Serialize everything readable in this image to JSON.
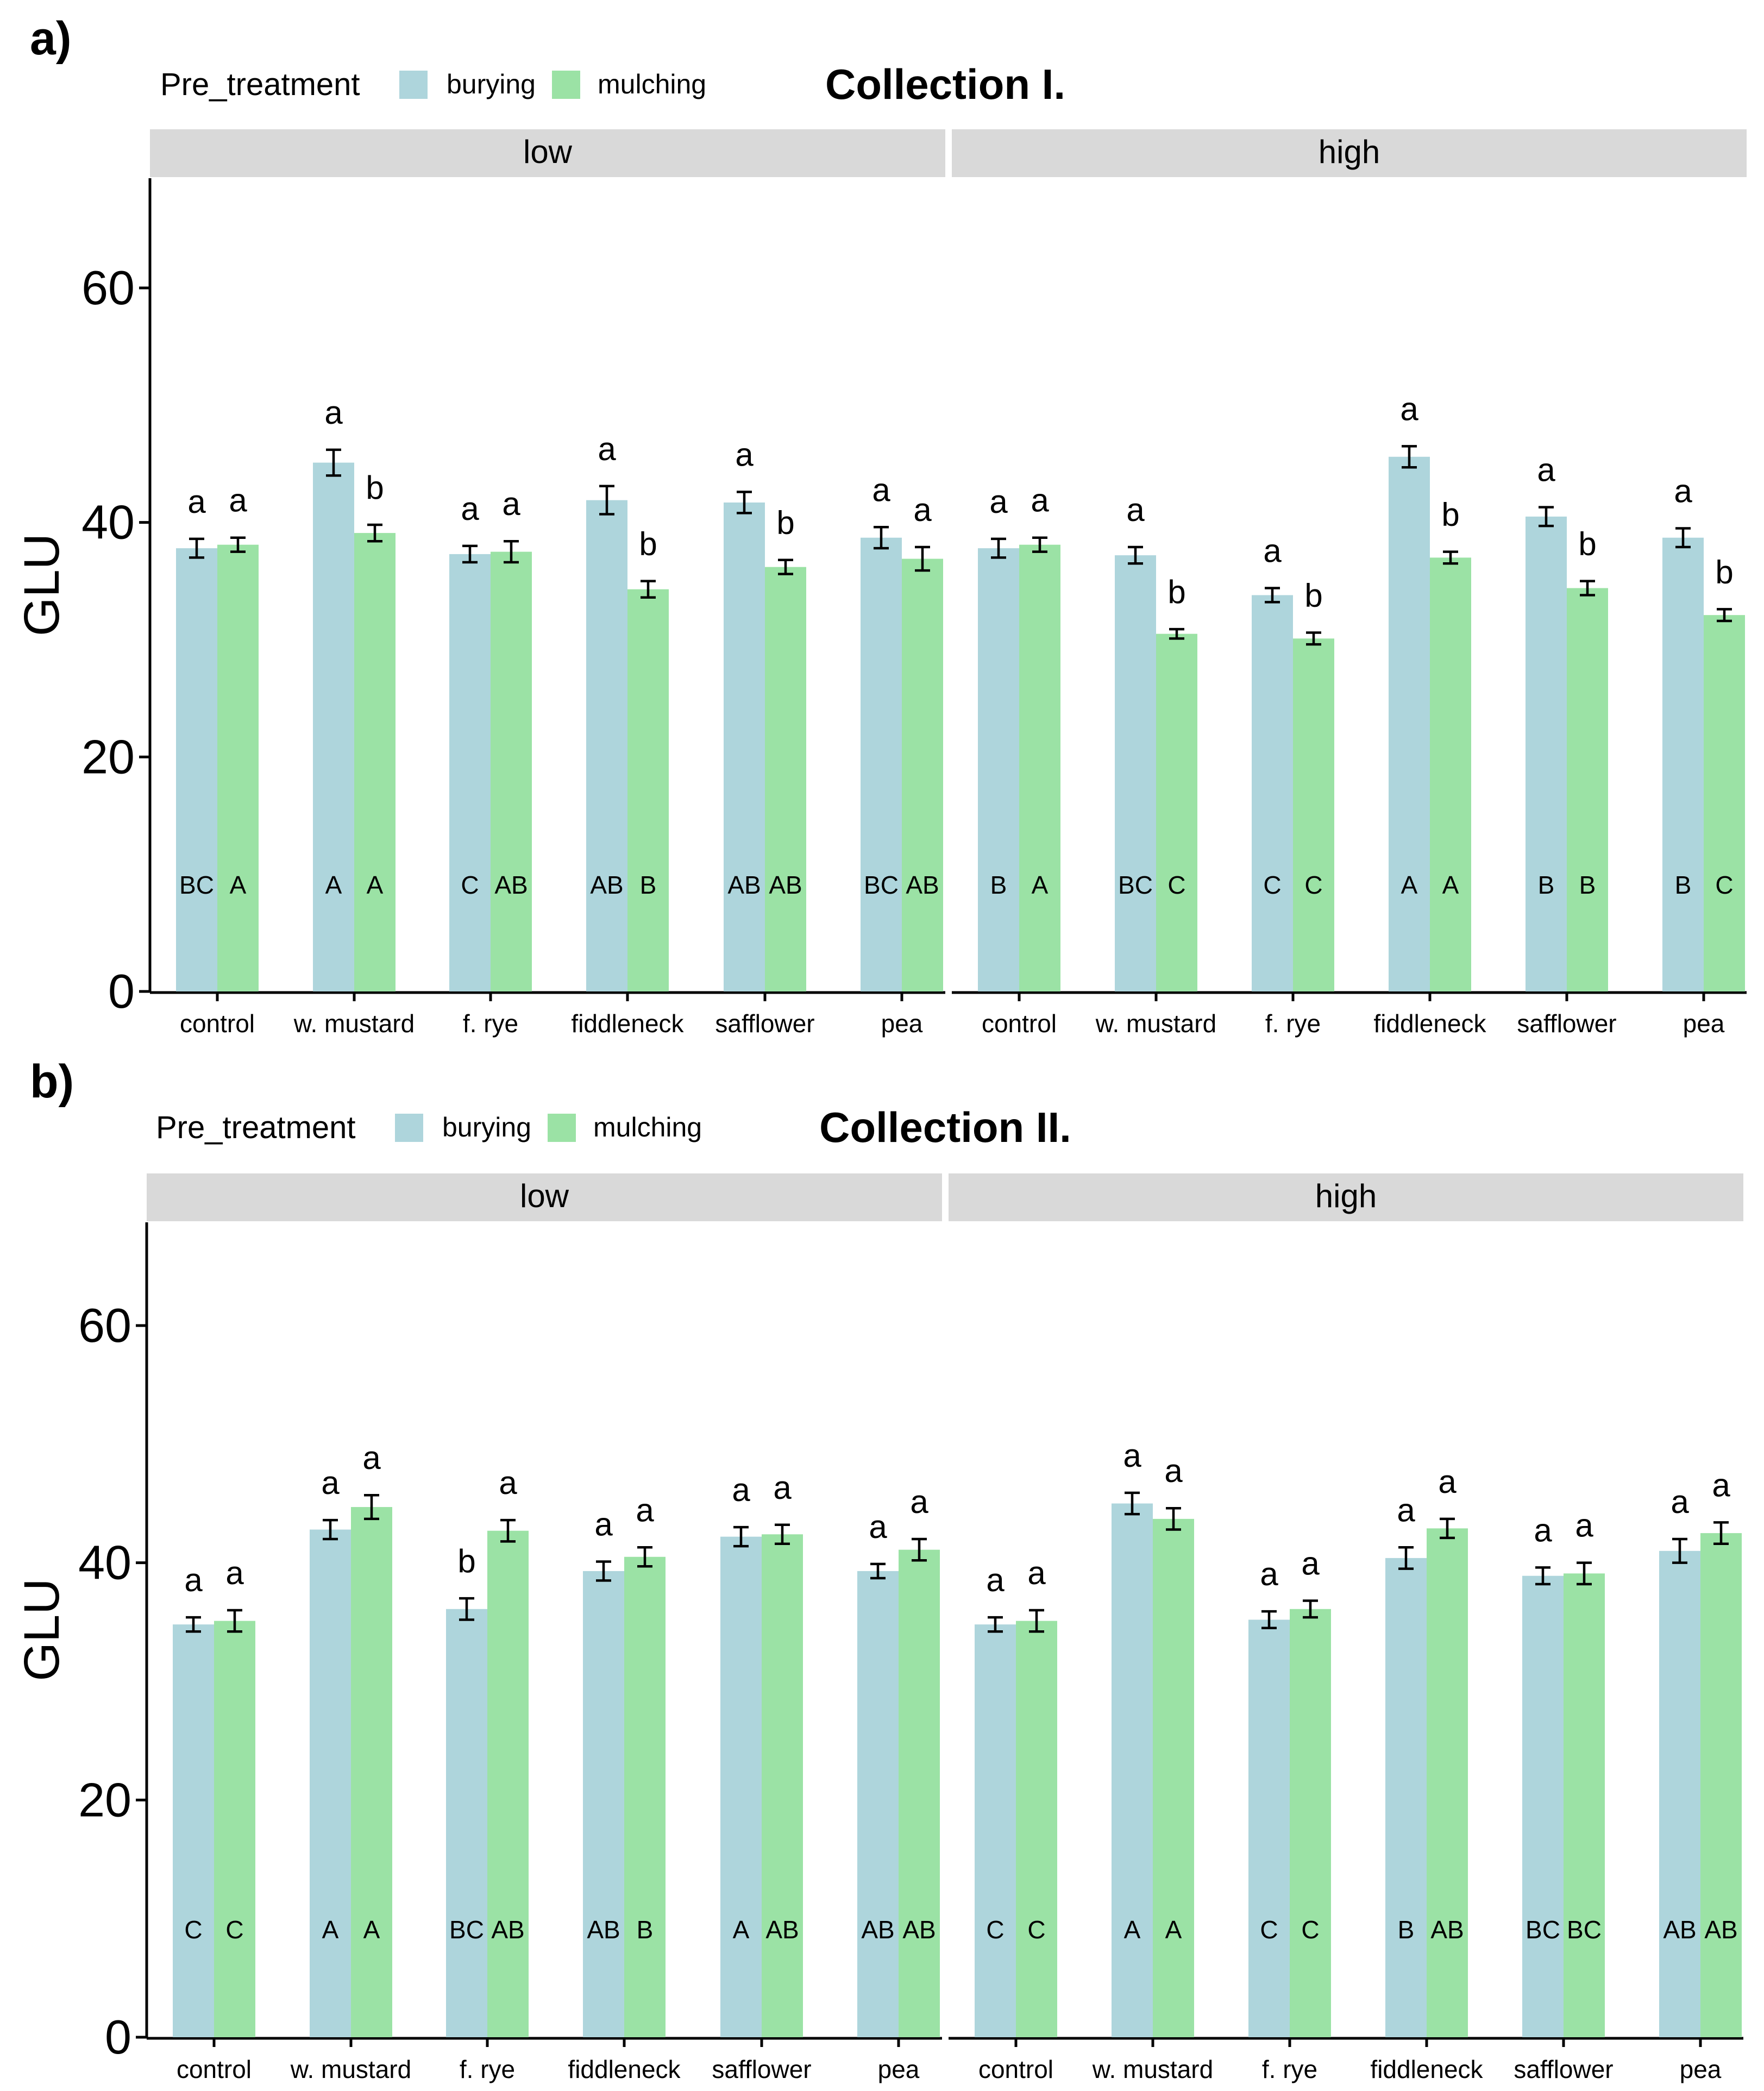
{
  "colors": {
    "burying": "#aed5dc",
    "mulching": "#9be2a5"
  },
  "legend": {
    "title": "Pre_treatment",
    "items": [
      "burying",
      "mulching"
    ]
  },
  "chart_data": [
    {
      "type": "bar",
      "panel_label": "a)",
      "title": "Collection I.",
      "ylabel": "GLU",
      "ylim": [
        0,
        68
      ],
      "yticks": [
        0,
        20,
        40,
        60
      ],
      "facets": [
        {
          "label": "low",
          "categories": [
            "control",
            "w. mustard",
            "f. rye",
            "fiddleneck",
            "safflower",
            "pea"
          ],
          "series": [
            {
              "name": "burying",
              "values": [
                37.8,
                45.1,
                37.3,
                41.9,
                41.7,
                38.7
              ],
              "errors": [
                0.8,
                1.1,
                0.7,
                1.2,
                0.9,
                0.9
              ],
              "letters_upper": [
                "BC",
                "A",
                "C",
                "AB",
                "AB",
                "BC"
              ]
            },
            {
              "name": "mulching",
              "values": [
                38.1,
                39.1,
                37.5,
                34.3,
                36.2,
                36.9
              ],
              "errors": [
                0.6,
                0.7,
                0.9,
                0.7,
                0.6,
                1.0
              ],
              "letters_upper": [
                "A",
                "A",
                "AB",
                "B",
                "AB",
                "AB"
              ]
            }
          ],
          "letters_lower": [
            [
              "a",
              "a"
            ],
            [
              "a",
              "b"
            ],
            [
              "a",
              "a"
            ],
            [
              "a",
              "b"
            ],
            [
              "a",
              "b"
            ],
            [
              "a",
              "a"
            ]
          ]
        },
        {
          "label": "high",
          "categories": [
            "control",
            "w. mustard",
            "f. rye",
            "fiddleneck",
            "safflower",
            "pea"
          ],
          "series": [
            {
              "name": "burying",
              "values": [
                37.8,
                37.2,
                33.8,
                45.6,
                40.5,
                38.7
              ],
              "errors": [
                0.8,
                0.7,
                0.6,
                0.9,
                0.8,
                0.8
              ],
              "letters_upper": [
                "B",
                "BC",
                "C",
                "A",
                "B",
                "B"
              ]
            },
            {
              "name": "mulching",
              "values": [
                38.1,
                30.5,
                30.1,
                37.0,
                34.4,
                32.1
              ],
              "errors": [
                0.6,
                0.4,
                0.5,
                0.5,
                0.6,
                0.5
              ],
              "letters_upper": [
                "A",
                "C",
                "C",
                "A",
                "B",
                "C"
              ]
            }
          ],
          "letters_lower": [
            [
              "a",
              "a"
            ],
            [
              "a",
              "b"
            ],
            [
              "a",
              "b"
            ],
            [
              "a",
              "b"
            ],
            [
              "a",
              "b"
            ],
            [
              "a",
              "b"
            ]
          ]
        }
      ]
    },
    {
      "type": "bar",
      "panel_label": "b)",
      "title": "Collection II.",
      "ylabel": "GLU",
      "ylim": [
        0,
        68
      ],
      "yticks": [
        0,
        20,
        40,
        60
      ],
      "facets": [
        {
          "label": "low",
          "categories": [
            "control",
            "w. mustard",
            "f. rye",
            "fiddleneck",
            "safflower",
            "pea"
          ],
          "series": [
            {
              "name": "burying",
              "values": [
                34.8,
                42.8,
                36.1,
                39.3,
                42.2,
                39.3
              ],
              "errors": [
                0.6,
                0.8,
                0.9,
                0.8,
                0.8,
                0.6
              ],
              "letters_upper": [
                "C",
                "A",
                "BC",
                "AB",
                "A",
                "AB"
              ]
            },
            {
              "name": "mulching",
              "values": [
                35.1,
                44.7,
                42.7,
                40.5,
                42.4,
                41.1
              ],
              "errors": [
                0.9,
                1.0,
                0.9,
                0.8,
                0.8,
                0.9
              ],
              "letters_upper": [
                "C",
                "A",
                "AB",
                "B",
                "AB",
                "AB"
              ]
            }
          ],
          "letters_lower": [
            [
              "a",
              "a"
            ],
            [
              "a",
              "a"
            ],
            [
              "b",
              "a"
            ],
            [
              "a",
              "a"
            ],
            [
              "a",
              "a"
            ],
            [
              "a",
              "a"
            ]
          ]
        },
        {
          "label": "high",
          "categories": [
            "control",
            "w. mustard",
            "f. rye",
            "fiddleneck",
            "safflower",
            "pea"
          ],
          "series": [
            {
              "name": "burying",
              "values": [
                34.8,
                45.0,
                35.2,
                40.4,
                38.9,
                41.0
              ],
              "errors": [
                0.6,
                0.9,
                0.7,
                0.9,
                0.7,
                1.0
              ],
              "letters_upper": [
                "C",
                "A",
                "C",
                "B",
                "BC",
                "AB"
              ]
            },
            {
              "name": "mulching",
              "values": [
                35.1,
                43.7,
                36.1,
                42.9,
                39.1,
                42.5
              ],
              "errors": [
                0.9,
                0.9,
                0.7,
                0.8,
                0.9,
                0.9
              ],
              "letters_upper": [
                "C",
                "A",
                "C",
                "AB",
                "BC",
                "AB"
              ]
            }
          ],
          "letters_lower": [
            [
              "a",
              "a"
            ],
            [
              "a",
              "a"
            ],
            [
              "a",
              "a"
            ],
            [
              "a",
              "a"
            ],
            [
              "a",
              "a"
            ],
            [
              "a",
              "a"
            ]
          ]
        }
      ]
    }
  ]
}
